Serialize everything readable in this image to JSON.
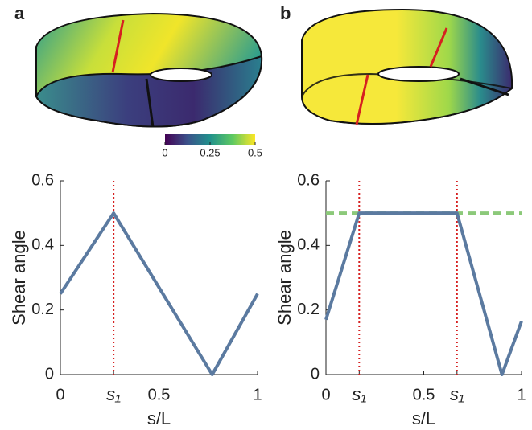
{
  "chart_data": [
    {
      "type": "line",
      "panel": "a",
      "x": [
        0,
        0.27,
        0.77,
        1
      ],
      "values": [
        0.25,
        0.5,
        0,
        0.25
      ],
      "color": "#5b7aa0",
      "xlim": [
        0,
        1
      ],
      "ylim": [
        0,
        0.6
      ],
      "xticks": [
        0,
        {
          "value": 0.27,
          "label": "s₁"
        },
        0.5,
        1
      ],
      "yticks": [
        0,
        0.2,
        0.4,
        0.6
      ],
      "xlabel": "s/L",
      "ylabel": "Shear angle",
      "vlines": [
        0.27
      ],
      "vline_color": "#d62020",
      "colorbar": {
        "lim": [
          0,
          0.5
        ],
        "ticks": [
          0,
          0.25,
          0.5
        ]
      }
    },
    {
      "type": "line",
      "panel": "b",
      "x": [
        0,
        0.17,
        0.67,
        0.9,
        1
      ],
      "values": [
        0.17,
        0.5,
        0.5,
        0,
        0.165
      ],
      "color": "#5b7aa0",
      "xlim": [
        0,
        1
      ],
      "ylim": [
        0,
        0.6
      ],
      "xticks": [
        0,
        {
          "value": 0.17,
          "label": "s₁"
        },
        0.5,
        {
          "value": 0.67,
          "label": "s₁"
        },
        1
      ],
      "yticks": [
        0,
        0.2,
        0.4,
        0.6
      ],
      "xlabel": "s/L",
      "ylabel": "Shear angle",
      "vlines": [
        0.17,
        0.67
      ],
      "vline_color": "#d62020",
      "hline": 0.5,
      "hline_color": "#8cc97a"
    }
  ]
}
